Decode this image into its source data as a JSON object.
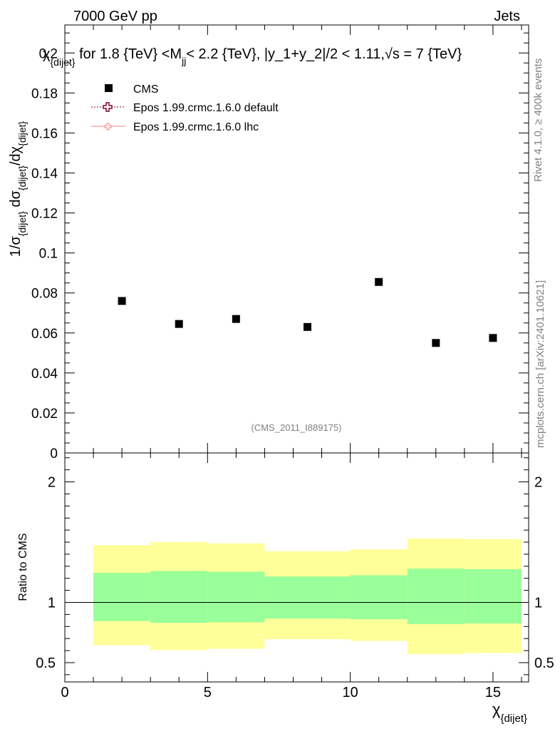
{
  "header": {
    "energy_label": "7000 GeV pp",
    "category_label": "Jets"
  },
  "side_labels": {
    "rivet": "Rivet 4.1.0, ≥ 400k events",
    "mcplots": "mcplots.cern.ch [arXiv:2401.10621]"
  },
  "chart_data": [
    {
      "type": "scatter",
      "title": "χ_{dijet} for 1.8 {TeV} < M_jj < 2.2 {TeV}, |y_1+y_2|/2 < 1.11, √s = 7 {TeV}",
      "title_parts": {
        "chi": "χ",
        "chi_sub": "{dijet}",
        "text1": " for 1.8 {TeV} <M",
        "m_sub": "jj",
        "text2": "< 2.2 {TeV}, |y_1+y_2|/2 < 1.11,",
        "sqrt": "√",
        "text3": "s = 7 {TeV}"
      },
      "ylabel_parts": {
        "p1": "1/σ",
        "s1": "{dijet}",
        "p2": " dσ",
        "s2": "{dijet}",
        "p3": "/dχ",
        "s3": "{dijet}"
      },
      "watermark": "(CMS_2011_I889175)",
      "xlim": [
        0,
        16.25
      ],
      "ylim": [
        0,
        0.214
      ],
      "y_ticks": [
        0,
        0.02,
        0.04,
        0.06,
        0.08,
        0.1,
        0.12,
        0.14,
        0.16,
        0.18,
        0.2
      ],
      "y_tick_labels": [
        "0",
        "0.02",
        "0.04",
        "0.06",
        "0.08",
        "0.1",
        "0.12",
        "0.14",
        "0.16",
        "0.18",
        "0.2"
      ],
      "legend": [
        {
          "name": "CMS",
          "marker": "square",
          "color": "#000000"
        },
        {
          "name": "Epos 1.99.crmc.1.6.0 default",
          "marker": "open-cross",
          "color": "#800030"
        },
        {
          "name": "Epos 1.99.crmc.1.6.0 lhc",
          "marker": "open-cross-small",
          "color": "#f08080"
        }
      ],
      "series": [
        {
          "name": "CMS",
          "x": [
            2,
            4,
            6,
            8.5,
            11,
            13,
            15
          ],
          "y": [
            0.076,
            0.0645,
            0.067,
            0.063,
            0.0855,
            0.055,
            0.0575
          ]
        }
      ]
    },
    {
      "type": "area",
      "ylabel": "Ratio to CMS",
      "xlabel_main": "χ",
      "xlabel_sub": "{dijet}",
      "xlim": [
        0,
        16.25
      ],
      "ylim": [
        0.34,
        2.24
      ],
      "y_ticks": [
        0.5,
        1,
        2
      ],
      "y_tick_labels": [
        "0.5",
        "1",
        "2"
      ],
      "x_ticks": [
        0,
        5,
        10,
        15
      ],
      "x_tick_labels": [
        "0",
        "5",
        "10",
        "15"
      ],
      "reference_line": 1,
      "bands": [
        {
          "xlow": 1,
          "xhigh": 3,
          "green": [
            0.845,
            1.245
          ],
          "yellow": [
            0.645,
            1.475
          ]
        },
        {
          "xlow": 3,
          "xhigh": 5,
          "green": [
            0.83,
            1.26
          ],
          "yellow": [
            0.605,
            1.5
          ]
        },
        {
          "xlow": 5,
          "xhigh": 7,
          "green": [
            0.835,
            1.255
          ],
          "yellow": [
            0.615,
            1.49
          ]
        },
        {
          "xlow": 7,
          "xhigh": 10,
          "green": [
            0.865,
            1.215
          ],
          "yellow": [
            0.695,
            1.425
          ]
        },
        {
          "xlow": 10,
          "xhigh": 12,
          "green": [
            0.86,
            1.225
          ],
          "yellow": [
            0.68,
            1.44
          ]
        },
        {
          "xlow": 12,
          "xhigh": 14,
          "green": [
            0.82,
            1.28
          ],
          "yellow": [
            0.57,
            1.53
          ]
        },
        {
          "xlow": 14,
          "xhigh": 16,
          "green": [
            0.825,
            1.275
          ],
          "yellow": [
            0.58,
            1.525
          ]
        }
      ],
      "colors": {
        "green": "#99ff99",
        "yellow": "#ffff99"
      }
    }
  ]
}
